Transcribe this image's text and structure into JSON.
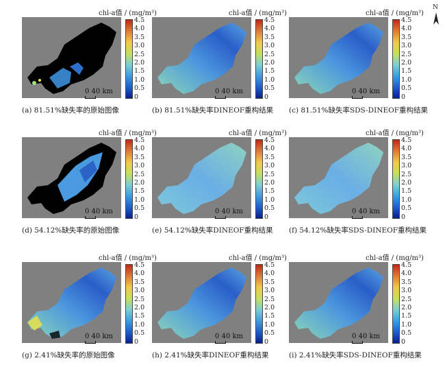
{
  "colorbar": {
    "title": "chl-a值 / (mg/m³)",
    "ticks": [
      "4.5",
      "4.0",
      "3.5",
      "3.0",
      "2.5",
      "2.0",
      "1.5",
      "1.0",
      "0.5",
      "0"
    ],
    "gradient": [
      "#0a1f8f",
      "#1f5fcf",
      "#3c9fe0",
      "#7fd0d0",
      "#c8e05a",
      "#f2c84a",
      "#e07a36",
      "#c02818"
    ]
  },
  "scale_label": "0  40 km",
  "north_label": "N",
  "panels": [
    {
      "caption": "(a) 81.51%缺失率的原始图像",
      "style": "original_high"
    },
    {
      "caption": "(b) 81.51%缺失率DINEOF重构结果",
      "style": "recon"
    },
    {
      "caption": "(c) 81.51%缺失率SDS-DINEOF重构结果",
      "style": "recon"
    },
    {
      "caption": "(d) 54.12%缺失率的原始图像",
      "style": "original_mid"
    },
    {
      "caption": "(e) 54.12%缺失率DINEOF重构结果",
      "style": "recon_light"
    },
    {
      "caption": "(f) 54.12%缺失率SDS-DINEOF重构结果",
      "style": "recon_light"
    },
    {
      "caption": "(g) 2.41%缺失率的原始图像",
      "style": "original_low"
    },
    {
      "caption": "(h) 2.41%缺失率DINEOF重构结果",
      "style": "recon"
    },
    {
      "caption": "(i) 2.41%缺失率SDS-DINEOF重构结果",
      "style": "recon"
    }
  ]
}
